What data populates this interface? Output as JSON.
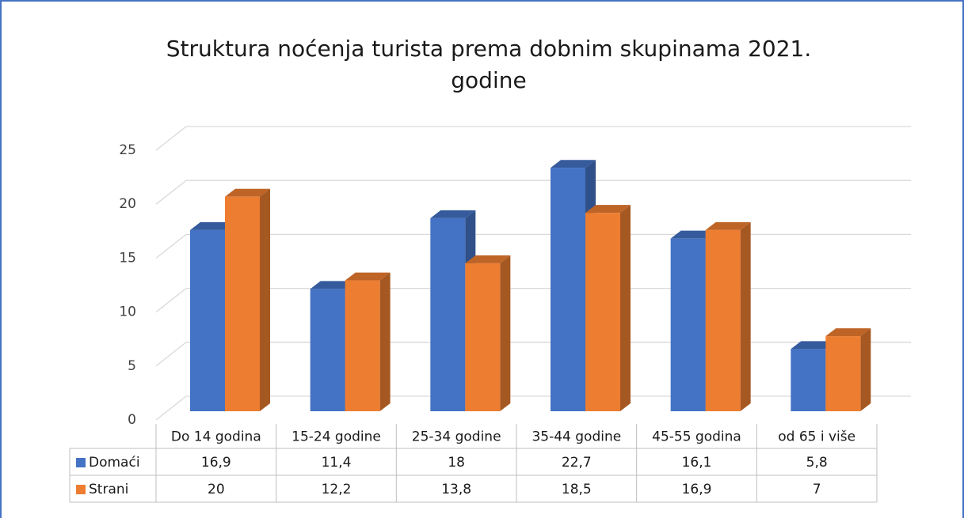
{
  "chart_data": {
    "type": "bar3d",
    "title": [
      "Struktura noćenja turista prema dobnim skupinama 2021.",
      "godine"
    ],
    "categories": [
      "Do 14 godina",
      "15-24 godine",
      "25-34 godine",
      "35-44 godine",
      "45-55 godina",
      "od 65 i više"
    ],
    "series": [
      {
        "name": "Domaći",
        "color": "#4472c4",
        "values": [
          16.9,
          11.4,
          18,
          22.7,
          16.1,
          5.8
        ],
        "value_labels": [
          "16,9",
          "11,4",
          "18",
          "22,7",
          "16,1",
          "5,8"
        ]
      },
      {
        "name": "Strani",
        "color": "#ed7d31",
        "values": [
          20,
          12.2,
          13.8,
          18.5,
          16.9,
          7
        ],
        "value_labels": [
          "20",
          "12,2",
          "13,8",
          "18,5",
          "16,9",
          "7"
        ]
      }
    ],
    "ylim": [
      0,
      25
    ],
    "yticks": [
      0,
      5,
      10,
      15,
      20,
      25
    ],
    "grid": true
  }
}
